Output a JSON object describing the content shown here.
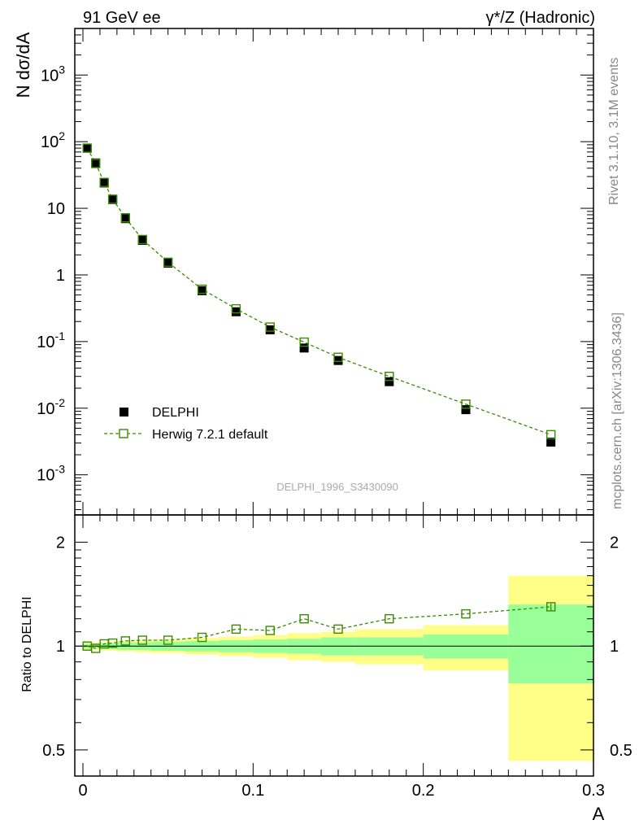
{
  "header": {
    "left": "91 GeV ee",
    "right": "γ*/Z (Hadronic)"
  },
  "side_notes": {
    "rivet": "Rivet 3.1.10,  3.1M events",
    "mcplots": "mcplots.cern.ch [arXiv:1306.3436]"
  },
  "watermark": "DELPHI_1996_S3430090",
  "colors": {
    "data": "#000000",
    "mc": "#3a8a00",
    "band_inner": "#99ff99",
    "band_outer": "#ffff88"
  },
  "chart_data": [
    {
      "type": "scatter",
      "ylabel": "N dσ/dA",
      "xlim": [
        0,
        0.3
      ],
      "ylim": [
        0.00025,
        5000
      ],
      "yscale": "log",
      "y_tick_labels": [
        "10^-3",
        "10^-2",
        "10^-1",
        "1",
        "10",
        "10^2",
        "10^3"
      ],
      "legend_position": "left",
      "series": [
        {
          "name": "DELPHI",
          "marker": "filled-square",
          "x": [
            0.0025,
            0.0075,
            0.0125,
            0.0175,
            0.025,
            0.035,
            0.05,
            0.07,
            0.09,
            0.11,
            0.13,
            0.15,
            0.18,
            0.225,
            0.275
          ],
          "y": [
            80,
            48,
            24,
            13.5,
            7,
            3.3,
            1.5,
            0.58,
            0.28,
            0.15,
            0.08,
            0.052,
            0.025,
            0.0095,
            0.0031
          ]
        },
        {
          "name": "Herwig 7.2.1 default",
          "marker": "open-square",
          "line": "dashed",
          "x": [
            0.0025,
            0.0075,
            0.0125,
            0.0175,
            0.025,
            0.035,
            0.05,
            0.07,
            0.09,
            0.11,
            0.13,
            0.15,
            0.18,
            0.225,
            0.275
          ],
          "y": [
            80,
            47,
            24.5,
            13.7,
            7.2,
            3.4,
            1.55,
            0.61,
            0.31,
            0.165,
            0.098,
            0.058,
            0.03,
            0.0115,
            0.004
          ]
        }
      ]
    },
    {
      "type": "scatter",
      "xlabel": "A",
      "ylabel": "Ratio to DELPHI",
      "xlim": [
        0,
        0.3
      ],
      "ylim": [
        0.42,
        2.4
      ],
      "yscale": "log",
      "x_tick_labels": [
        "0",
        "0.1",
        "0.2",
        "0.3"
      ],
      "y_tick_labels": [
        "0.5",
        "1",
        "2"
      ],
      "uncertainty_bands": [
        {
          "x0": 0,
          "x1": 0.005,
          "inner": [
            0.985,
            1.015
          ],
          "outer": [
            0.975,
            1.025
          ]
        },
        {
          "x0": 0.005,
          "x1": 0.01,
          "inner": [
            0.985,
            1.015
          ],
          "outer": [
            0.975,
            1.025
          ]
        },
        {
          "x0": 0.01,
          "x1": 0.015,
          "inner": [
            0.98,
            1.02
          ],
          "outer": [
            0.97,
            1.03
          ]
        },
        {
          "x0": 0.015,
          "x1": 0.02,
          "inner": [
            0.98,
            1.02
          ],
          "outer": [
            0.97,
            1.03
          ]
        },
        {
          "x0": 0.02,
          "x1": 0.03,
          "inner": [
            0.975,
            1.025
          ],
          "outer": [
            0.965,
            1.035
          ]
        },
        {
          "x0": 0.03,
          "x1": 0.04,
          "inner": [
            0.975,
            1.025
          ],
          "outer": [
            0.96,
            1.04
          ]
        },
        {
          "x0": 0.04,
          "x1": 0.06,
          "inner": [
            0.97,
            1.03
          ],
          "outer": [
            0.955,
            1.045
          ]
        },
        {
          "x0": 0.06,
          "x1": 0.08,
          "inner": [
            0.965,
            1.035
          ],
          "outer": [
            0.945,
            1.055
          ]
        },
        {
          "x0": 0.08,
          "x1": 0.1,
          "inner": [
            0.96,
            1.04
          ],
          "outer": [
            0.935,
            1.065
          ]
        },
        {
          "x0": 0.1,
          "x1": 0.12,
          "inner": [
            0.955,
            1.045
          ],
          "outer": [
            0.925,
            1.075
          ]
        },
        {
          "x0": 0.12,
          "x1": 0.14,
          "inner": [
            0.95,
            1.05
          ],
          "outer": [
            0.91,
            1.09
          ]
        },
        {
          "x0": 0.14,
          "x1": 0.16,
          "inner": [
            0.94,
            1.06
          ],
          "outer": [
            0.9,
            1.1
          ]
        },
        {
          "x0": 0.16,
          "x1": 0.2,
          "inner": [
            0.94,
            1.06
          ],
          "outer": [
            0.885,
            1.12
          ]
        },
        {
          "x0": 0.2,
          "x1": 0.25,
          "inner": [
            0.92,
            1.08
          ],
          "outer": [
            0.85,
            1.15
          ]
        },
        {
          "x0": 0.25,
          "x1": 0.3,
          "inner": [
            0.78,
            1.32
          ],
          "outer": [
            0.465,
            1.6
          ]
        }
      ],
      "series": [
        {
          "name": "Herwig 7.2.1 default",
          "marker": "open-square",
          "line": "dashed",
          "x": [
            0.0025,
            0.0075,
            0.0125,
            0.0175,
            0.025,
            0.035,
            0.05,
            0.07,
            0.09,
            0.11,
            0.13,
            0.15,
            0.18,
            0.225,
            0.275
          ],
          "y": [
            1.0,
            0.985,
            1.015,
            1.02,
            1.035,
            1.04,
            1.04,
            1.06,
            1.12,
            1.11,
            1.2,
            1.12,
            1.2,
            1.24,
            1.3
          ],
          "yerr": [
            0,
            0,
            0,
            0,
            0,
            0,
            0,
            0,
            0,
            0,
            0,
            0,
            0,
            0,
            0.03
          ]
        }
      ]
    }
  ]
}
